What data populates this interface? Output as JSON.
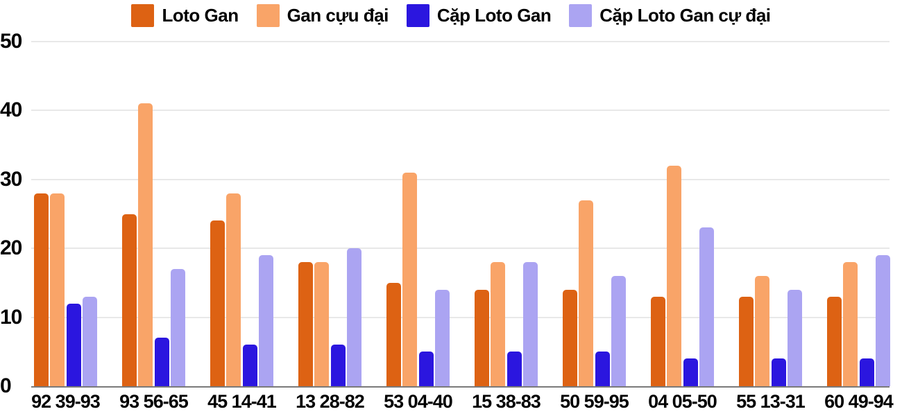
{
  "chart_data": {
    "type": "bar",
    "title": "",
    "xlabel": "",
    "ylabel": "",
    "categories": [
      "92 39-93",
      "93 56-65",
      "45 14-41",
      "13 28-82",
      "53 04-40",
      "15 38-83",
      "50 59-95",
      "04 05-50",
      "55 13-31",
      "60 49-94"
    ],
    "series": [
      {
        "name": "Loto Gan",
        "color": "#DD6213",
        "values": [
          28,
          25,
          24,
          18,
          15,
          14,
          14,
          13,
          13,
          13
        ]
      },
      {
        "name": "Gan cựu đại",
        "color": "#F9A468",
        "values": [
          28,
          41,
          28,
          18,
          31,
          18,
          27,
          32,
          16,
          18
        ]
      },
      {
        "name": "Cặp Loto Gan",
        "color": "#2B16DF",
        "values": [
          12,
          7,
          6,
          6,
          5,
          5,
          5,
          4,
          4,
          4
        ]
      },
      {
        "name": "Cặp Loto Gan cự đại",
        "color": "#ABA4F2",
        "values": [
          13,
          17,
          19,
          20,
          14,
          18,
          16,
          23,
          14,
          19
        ]
      }
    ],
    "y_ticks": [
      0,
      10,
      20,
      30,
      40,
      50
    ],
    "ylim": [
      0,
      50
    ],
    "grid": true,
    "legend_position": "top",
    "colors": {
      "background": "#ffffff",
      "axis_text": "#000000",
      "gridline": "#e8e8e8",
      "baseline": "#7a7a7a"
    }
  }
}
